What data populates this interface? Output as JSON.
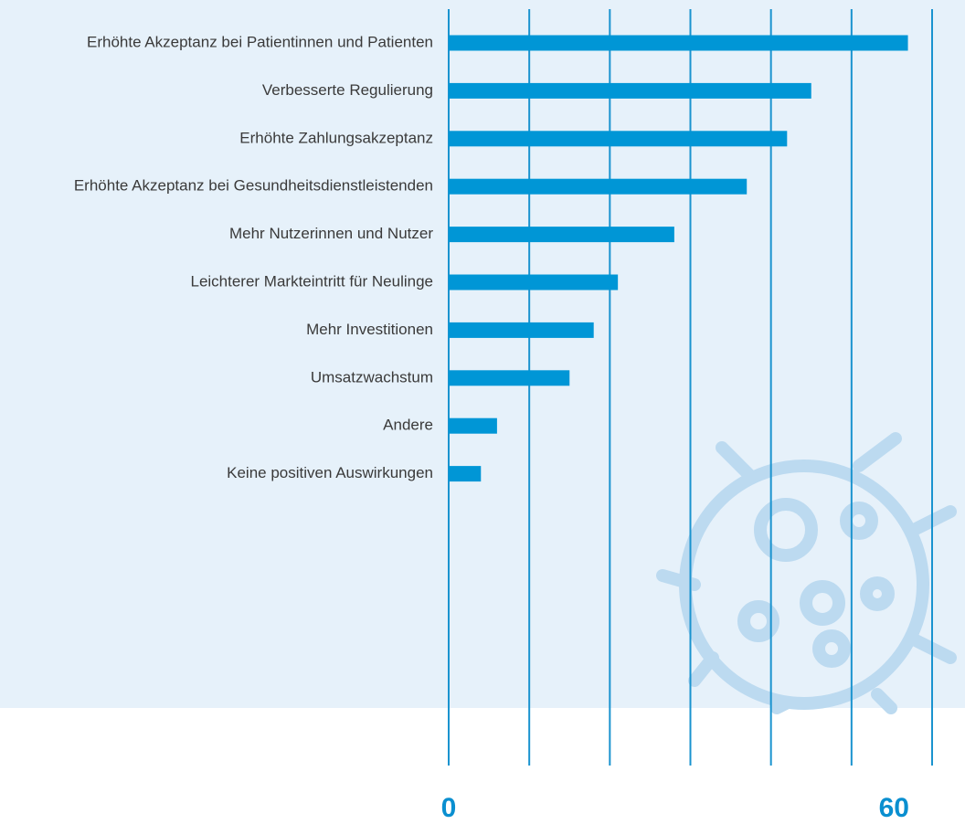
{
  "chart_data": {
    "type": "bar",
    "orientation": "horizontal",
    "categories": [
      "Erhöhte Akzeptanz bei Patientinnen und Patienten",
      "Verbesserte Regulierung",
      "Erhöhte Zahlungsakzeptanz",
      "Erhöhte Akzeptanz bei Gesundheitsdienstleistenden",
      "Mehr Nutzerinnen und Nutzer",
      "Leichterer Markteintritt für Neulinge",
      "Mehr Investitionen",
      "Umsatzwachstum",
      "Andere",
      "Keine positiven Auswirkungen"
    ],
    "values": [
      57,
      45,
      42,
      37,
      28,
      21,
      18,
      15,
      6,
      4
    ],
    "color": "#0096d6",
    "xlim": [
      0,
      60
    ],
    "xticks": [
      0,
      60
    ],
    "grid_lines": [
      0,
      10,
      20,
      30,
      40,
      50,
      60
    ],
    "grid": true
  }
}
